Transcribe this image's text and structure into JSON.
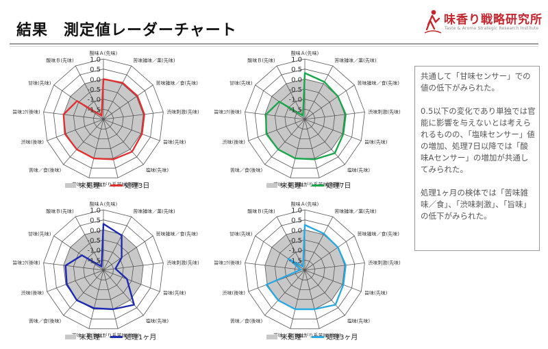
{
  "title": "結果　測定値レーダーチャート",
  "logo": {
    "name": "味香り戦略研究所",
    "subtitle": "Taste & Aroma Strategic Research Institute",
    "brand_color": "#c4262e"
  },
  "comment": {
    "paragraphs": [
      "共通して「甘味センサー」での値の低下がみられた。",
      "0.5以下の変化であり単独では官能に影響を与えないとは考えられるものの、「塩味センサー」値の増加、処理7日以降では「酸味Aセンサー」の増加が共通してみられた。",
      "処理1ヶ月の検体では「苦味雑味／食」、「渋味刺激」、「旨味」の低下がみられた。"
    ]
  },
  "chart_data": [
    {
      "type": "radar",
      "axes": [
        "酸味Ａ(先味)",
        "苦味雑味／薬(先味)",
        "苦味雑味／食(先味)",
        "渋味刺激(先味)",
        "旨味(先味)",
        "塩味(先味)",
        "にがり系苦味(後味)",
        "苦味／薬(後味)",
        "苦味／食(後味)",
        "渋味(後味)",
        "旨味ｺｸ(後味)",
        "甘味(先味)",
        "酸味Ｂ(先味)"
      ],
      "ticks": [
        1.0,
        0.5,
        0.0,
        -0.5,
        -1.0,
        -1.5
      ],
      "tick_labels": [
        "1.0",
        "0.5",
        "0.0",
        "-0.5",
        "-1.0",
        "-1.5"
      ],
      "range": [
        -2.0,
        1.0
      ],
      "series": [
        {
          "name": "未処理",
          "color": "#c8c8c8",
          "style": "fill",
          "values": [
            0.0,
            0.0,
            0.0,
            0.0,
            0.0,
            0.0,
            0.0,
            0.0,
            0.0,
            0.0,
            0.0,
            0.0,
            0.0
          ]
        },
        {
          "name": "処理3日",
          "color": "#e03030",
          "style": "line",
          "values": [
            0.0,
            0.05,
            0.05,
            0.05,
            0.05,
            0.15,
            0.05,
            0.0,
            0.0,
            0.05,
            0.0,
            -0.4,
            -1.8
          ]
        }
      ]
    },
    {
      "type": "radar",
      "axes": [
        "酸味Ａ(先味)",
        "苦味雑味／薬(先味)",
        "苦味雑味／食(先味)",
        "渋味刺激(先味)",
        "旨味(先味)",
        "塩味(先味)",
        "にがり系苦味(後味)",
        "苦味／薬(後味)",
        "苦味／食(後味)",
        "渋味(後味)",
        "旨味ｺｸ(後味)",
        "甘味(先味)",
        "酸味Ｂ(先味)"
      ],
      "ticks": [
        1.0,
        0.5,
        0.0,
        -0.5,
        -1.0,
        -1.5
      ],
      "tick_labels": [
        "1.0",
        "0.5",
        "0.0",
        "-0.5",
        "-1.0",
        "-1.5"
      ],
      "range": [
        -2.0,
        1.0
      ],
      "series": [
        {
          "name": "未処理",
          "color": "#c8c8c8",
          "style": "fill",
          "values": [
            0.0,
            0.0,
            0.0,
            0.0,
            0.0,
            0.0,
            0.0,
            0.0,
            0.0,
            0.0,
            0.0,
            0.0,
            0.0
          ]
        },
        {
          "name": "処理7日",
          "color": "#1aa64a",
          "style": "line",
          "values": [
            0.3,
            0.1,
            0.0,
            0.05,
            0.05,
            0.25,
            0.05,
            0.0,
            0.0,
            0.05,
            -0.05,
            -0.45,
            -1.8
          ]
        }
      ]
    },
    {
      "type": "radar",
      "axes": [
        "酸味Ａ(先味)",
        "苦味雑味／薬(先味)",
        "苦味雑味／食(先味)",
        "渋味刺激(先味)",
        "旨味(先味)",
        "塩味(先味)",
        "にがり系苦味(後味)",
        "苦味／薬(後味)",
        "苦味／食(後味)",
        "渋味(後味)",
        "旨味ｺｸ(後味)",
        "甘味(先味)",
        "酸味Ｂ(先味)"
      ],
      "ticks": [
        1.0,
        0.5,
        0.0,
        -0.5,
        -1.0,
        -1.5
      ],
      "tick_labels": [
        "1.0",
        "0.5",
        "0.0",
        "-0.5",
        "-1.0",
        "-1.5"
      ],
      "range": [
        -2.0,
        1.0
      ],
      "series": [
        {
          "name": "未処理",
          "color": "#c8c8c8",
          "style": "fill",
          "values": [
            0.0,
            0.0,
            0.0,
            0.0,
            0.0,
            0.0,
            0.0,
            0.0,
            0.0,
            0.0,
            0.0,
            0.0,
            0.0
          ]
        },
        {
          "name": "処理1ヶ月",
          "color": "#1c2bb0",
          "style": "line",
          "values": [
            0.3,
            -0.05,
            -0.9,
            -1.4,
            -0.75,
            0.3,
            0.0,
            -0.05,
            0.0,
            -0.05,
            -0.1,
            -0.7,
            -1.8
          ]
        }
      ]
    },
    {
      "type": "radar",
      "axes": [
        "酸味Ａ(先味)",
        "苦味雑味／薬(先味)",
        "苦味雑味／食(先味)",
        "渋味刺激(先味)",
        "旨味(先味)",
        "塩味(先味)",
        "にがり系苦味(後味)",
        "苦味／薬(後味)",
        "苦味／食(後味)",
        "渋味(後味)",
        "旨味ｺｸ(後味)",
        "甘味(先味)",
        "酸味Ｂ(先味)"
      ],
      "ticks": [
        1.0,
        0.5,
        0.0,
        -0.5,
        -1.0,
        -1.5
      ],
      "tick_labels": [
        "1.0",
        "0.5",
        "0.0",
        "-0.5",
        "-1.0",
        "-1.5"
      ],
      "range": [
        -2.0,
        1.0
      ],
      "series": [
        {
          "name": "未処理",
          "color": "#c8c8c8",
          "style": "fill",
          "values": [
            0.0,
            0.0,
            0.0,
            0.0,
            0.0,
            0.0,
            0.0,
            0.0,
            0.0,
            0.0,
            0.0,
            0.0,
            0.0
          ]
        },
        {
          "name": "処理3ヶ月",
          "color": "#2aa8e0",
          "style": "line",
          "values": [
            0.25,
            0.05,
            0.0,
            0.05,
            0.05,
            0.3,
            0.0,
            0.0,
            0.0,
            0.05,
            -1.8,
            -1.0,
            -1.8
          ]
        }
      ]
    }
  ]
}
